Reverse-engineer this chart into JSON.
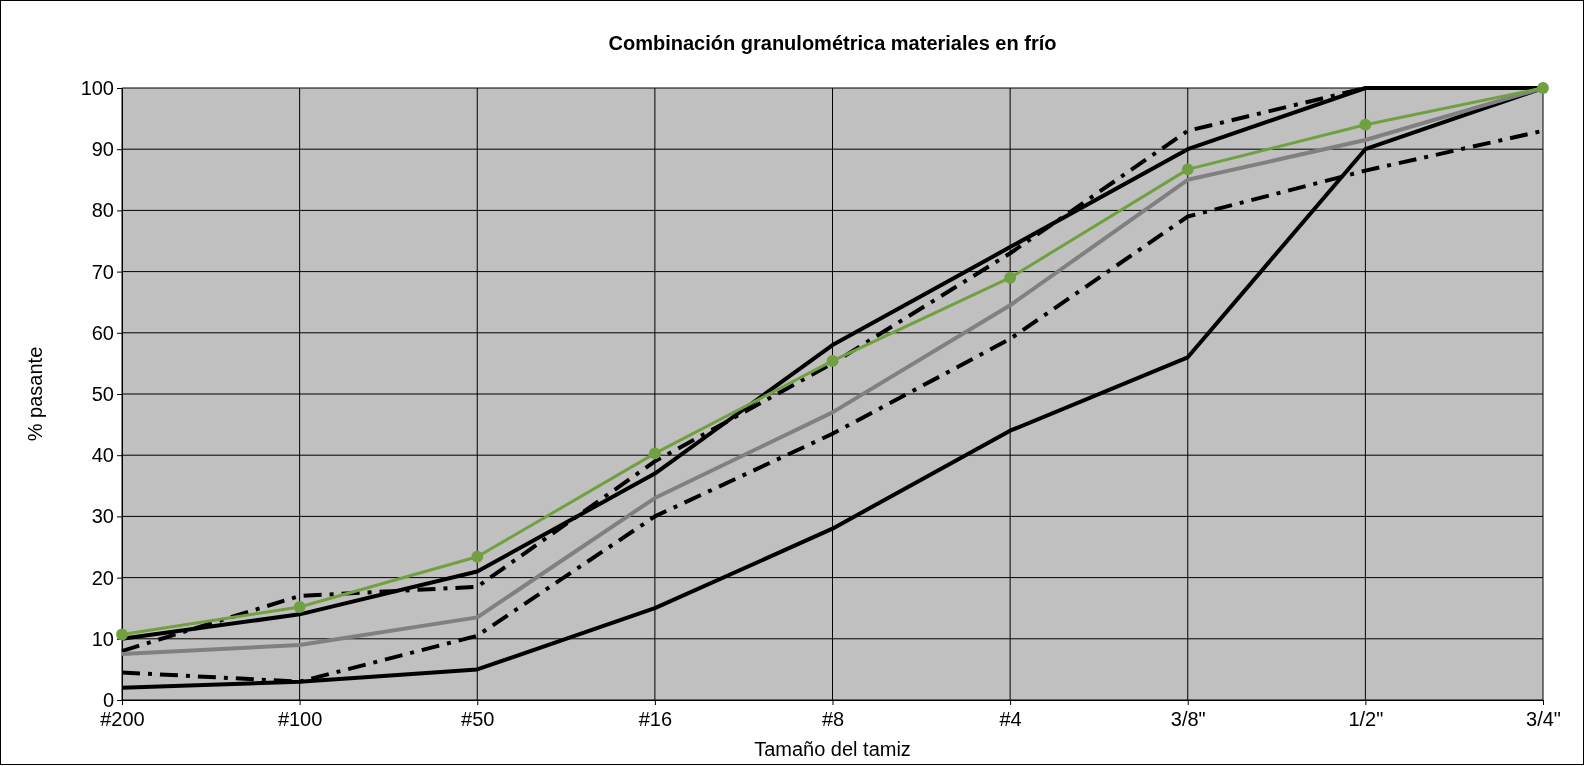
{
  "chart_data": {
    "type": "line",
    "title": "Combinación granulométrica materiales en frío",
    "xlabel": "Tamaño del tamiz",
    "ylabel": "% pasante",
    "categories": [
      "#200",
      "#100",
      "#50",
      "#16",
      "#8",
      "#4",
      "3/8\"",
      "1/2\"",
      "3/4\""
    ],
    "ylim": [
      0,
      100
    ],
    "yticks": [
      0,
      10,
      20,
      30,
      40,
      50,
      60,
      70,
      80,
      90,
      100
    ],
    "grid": true,
    "series": [
      {
        "color": "#000000",
        "line_style": "solid",
        "marker": "none",
        "values": [
          10,
          14,
          21,
          37,
          58,
          74,
          90,
          100,
          100
        ]
      },
      {
        "color": "#000000",
        "line_style": "solid",
        "marker": "none",
        "values": [
          2,
          3,
          5,
          15,
          28,
          44,
          56,
          90,
          100
        ]
      },
      {
        "color": "#000000",
        "line_style": "dashed",
        "marker": "none",
        "values": [
          8,
          17,
          18.5,
          39,
          55,
          73,
          93,
          100,
          100
        ]
      },
      {
        "color": "#000000",
        "line_style": "dashed",
        "marker": "none",
        "values": [
          4.5,
          3,
          10.5,
          30,
          43.5,
          59,
          79,
          86.5,
          93
        ]
      },
      {
        "color": "#808080",
        "line_style": "solid",
        "marker": "none",
        "values": [
          7.5,
          9,
          13.5,
          33,
          47,
          64.5,
          85,
          91.5,
          100
        ]
      },
      {
        "color": "#70a040",
        "line_style": "solid",
        "marker": "circle",
        "values": [
          10.7,
          15.2,
          23.4,
          40.3,
          55.4,
          69,
          86.7,
          94,
          100
        ]
      }
    ]
  }
}
